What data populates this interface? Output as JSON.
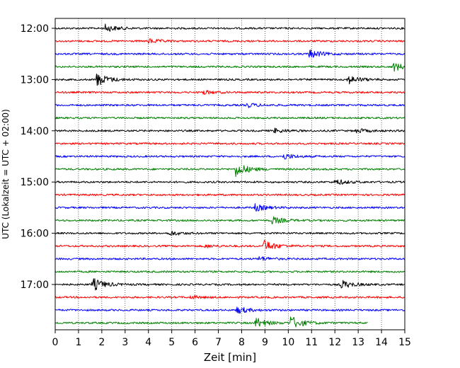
{
  "chart_data": {
    "type": "line",
    "title": "",
    "xlabel": "Zeit  [min]",
    "ylabel": "UTC (Lokalzeit = UTC + 02:00)",
    "xlim": [
      0,
      15
    ],
    "x_ticks": [
      "0",
      "1",
      "2",
      "3",
      "4",
      "5",
      "6",
      "7",
      "8",
      "9",
      "10",
      "11",
      "12",
      "13",
      "14",
      "15"
    ],
    "y_tick_labels": [
      "12:00",
      "13:00",
      "14:00",
      "15:00",
      "16:00",
      "17:00"
    ],
    "grid": "vertical-dotted",
    "trace_colors": [
      "#000000",
      "#ff0000",
      "#0000ff",
      "#008000"
    ],
    "series": [
      {
        "start": "12:00",
        "color": "#000000",
        "events": [
          {
            "t": 2.15,
            "amp": 5
          }
        ]
      },
      {
        "start": "12:15",
        "color": "#ff0000",
        "events": [
          {
            "t": 4.0,
            "amp": 3
          }
        ]
      },
      {
        "start": "12:30",
        "color": "#0000ff",
        "events": [
          {
            "t": 10.9,
            "amp": 6
          }
        ]
      },
      {
        "start": "12:45",
        "color": "#008000",
        "events": [
          {
            "t": 14.5,
            "amp": 6
          }
        ]
      },
      {
        "start": "13:00",
        "color": "#000000",
        "events": [
          {
            "t": 1.75,
            "amp": 10
          },
          {
            "t": 12.55,
            "amp": 6
          }
        ]
      },
      {
        "start": "13:15",
        "color": "#ff0000",
        "events": [
          {
            "t": 6.3,
            "amp": 3
          }
        ]
      },
      {
        "start": "13:30",
        "color": "#0000ff",
        "events": [
          {
            "t": 8.2,
            "amp": 3
          }
        ]
      },
      {
        "start": "13:45",
        "color": "#008000",
        "events": []
      },
      {
        "start": "14:00",
        "color": "#000000",
        "events": [
          {
            "t": 9.4,
            "amp": 3
          },
          {
            "t": 12.9,
            "amp": 3
          }
        ]
      },
      {
        "start": "14:15",
        "color": "#ff0000",
        "events": []
      },
      {
        "start": "14:30",
        "color": "#0000ff",
        "events": [
          {
            "t": 9.8,
            "amp": 4
          }
        ]
      },
      {
        "start": "14:45",
        "color": "#008000",
        "events": [
          {
            "t": 7.75,
            "amp": 10
          }
        ]
      },
      {
        "start": "15:00",
        "color": "#000000",
        "events": [
          {
            "t": 12.0,
            "amp": 4
          }
        ]
      },
      {
        "start": "15:15",
        "color": "#ff0000",
        "events": []
      },
      {
        "start": "15:30",
        "color": "#0000ff",
        "events": [
          {
            "t": 8.55,
            "amp": 5
          }
        ]
      },
      {
        "start": "15:45",
        "color": "#008000",
        "events": [
          {
            "t": 9.3,
            "amp": 5
          }
        ]
      },
      {
        "start": "16:00",
        "color": "#000000",
        "events": [
          {
            "t": 4.9,
            "amp": 3
          }
        ]
      },
      {
        "start": "16:15",
        "color": "#ff0000",
        "events": [
          {
            "t": 8.95,
            "amp": 8
          },
          {
            "t": 6.4,
            "amp": 2
          }
        ]
      },
      {
        "start": "16:30",
        "color": "#0000ff",
        "events": [
          {
            "t": 8.75,
            "amp": 3
          }
        ]
      },
      {
        "start": "16:45",
        "color": "#008000",
        "events": []
      },
      {
        "start": "17:00",
        "color": "#000000",
        "events": [
          {
            "t": 1.6,
            "amp": 9
          },
          {
            "t": 12.25,
            "amp": 6
          }
        ]
      },
      {
        "start": "17:15",
        "color": "#ff0000",
        "events": [
          {
            "t": 5.8,
            "amp": 2
          }
        ]
      },
      {
        "start": "17:30",
        "color": "#0000ff",
        "events": [
          {
            "t": 7.8,
            "amp": 5
          }
        ]
      },
      {
        "start": "17:45",
        "color": "#008000",
        "end": 13.4,
        "events": [
          {
            "t": 8.6,
            "amp": 7
          },
          {
            "t": 10.1,
            "amp": 9
          }
        ]
      }
    ]
  }
}
